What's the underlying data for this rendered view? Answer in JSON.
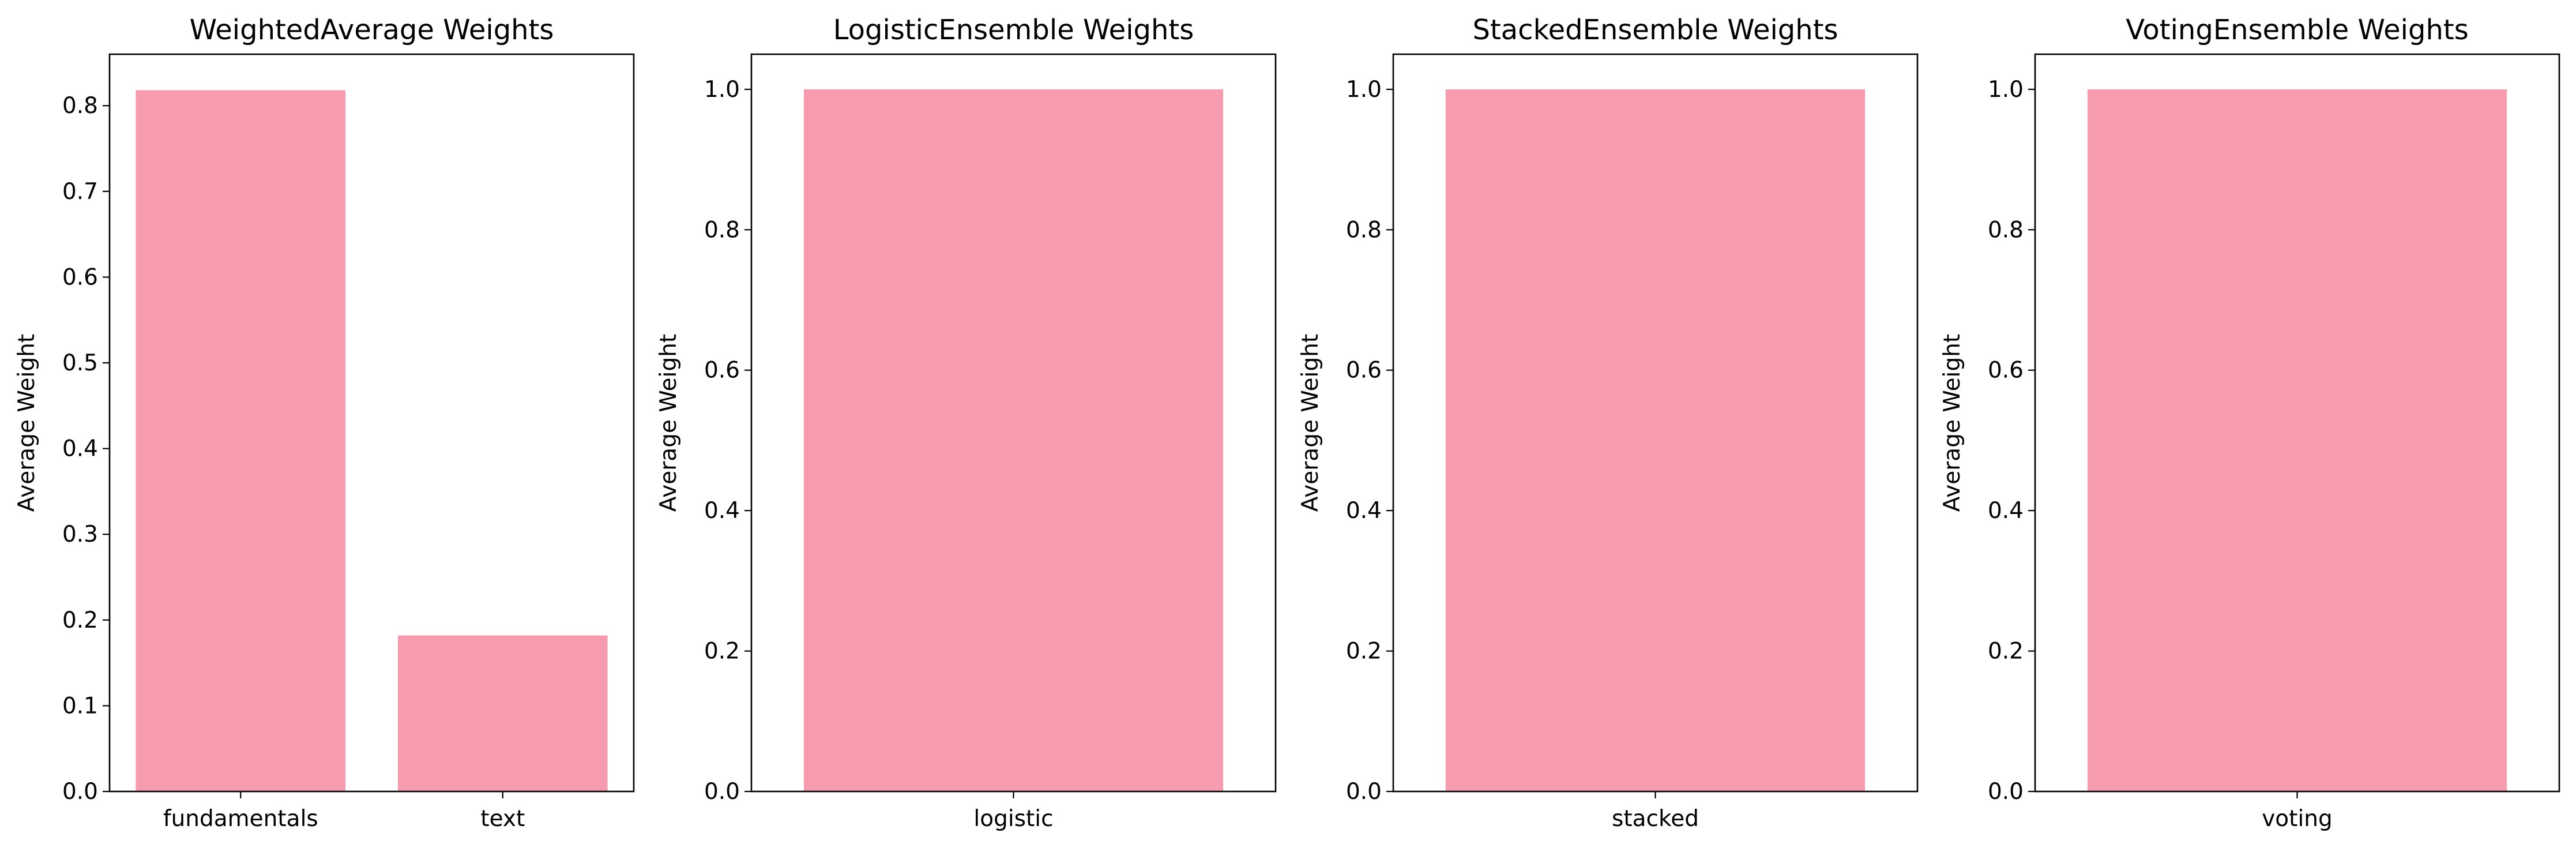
{
  "bar_color": "#f79bae",
  "chart_data": [
    {
      "type": "bar",
      "title": "WeightedAverage Weights",
      "xlabel": "",
      "ylabel": "Average Weight",
      "categories": [
        "fundamentals",
        "text"
      ],
      "values": [
        0.818,
        0.182
      ],
      "ylim": [
        0,
        0.86
      ],
      "yticks": [
        0.0,
        0.1,
        0.2,
        0.3,
        0.4,
        0.5,
        0.6,
        0.7,
        0.8
      ],
      "ytick_labels": [
        "0.0",
        "0.1",
        "0.2",
        "0.3",
        "0.4",
        "0.5",
        "0.6",
        "0.7",
        "0.8"
      ],
      "grid": false,
      "legend": "none"
    },
    {
      "type": "bar",
      "title": "LogisticEnsemble Weights",
      "xlabel": "",
      "ylabel": "Average Weight",
      "categories": [
        "logistic"
      ],
      "values": [
        1.0
      ],
      "ylim": [
        0,
        1.05
      ],
      "yticks": [
        0.0,
        0.2,
        0.4,
        0.6,
        0.8,
        1.0
      ],
      "ytick_labels": [
        "0.0",
        "0.2",
        "0.4",
        "0.6",
        "0.8",
        "1.0"
      ],
      "grid": false,
      "legend": "none"
    },
    {
      "type": "bar",
      "title": "StackedEnsemble Weights",
      "xlabel": "",
      "ylabel": "Average Weight",
      "categories": [
        "stacked"
      ],
      "values": [
        1.0
      ],
      "ylim": [
        0,
        1.05
      ],
      "yticks": [
        0.0,
        0.2,
        0.4,
        0.6,
        0.8,
        1.0
      ],
      "ytick_labels": [
        "0.0",
        "0.2",
        "0.4",
        "0.6",
        "0.8",
        "1.0"
      ],
      "grid": false,
      "legend": "none"
    },
    {
      "type": "bar",
      "title": "VotingEnsemble Weights",
      "xlabel": "",
      "ylabel": "Average Weight",
      "categories": [
        "voting"
      ],
      "values": [
        1.0
      ],
      "ylim": [
        0,
        1.05
      ],
      "yticks": [
        0.0,
        0.2,
        0.4,
        0.6,
        0.8,
        1.0
      ],
      "ytick_labels": [
        "0.0",
        "0.2",
        "0.4",
        "0.6",
        "0.8",
        "1.0"
      ],
      "grid": false,
      "legend": "none"
    }
  ]
}
